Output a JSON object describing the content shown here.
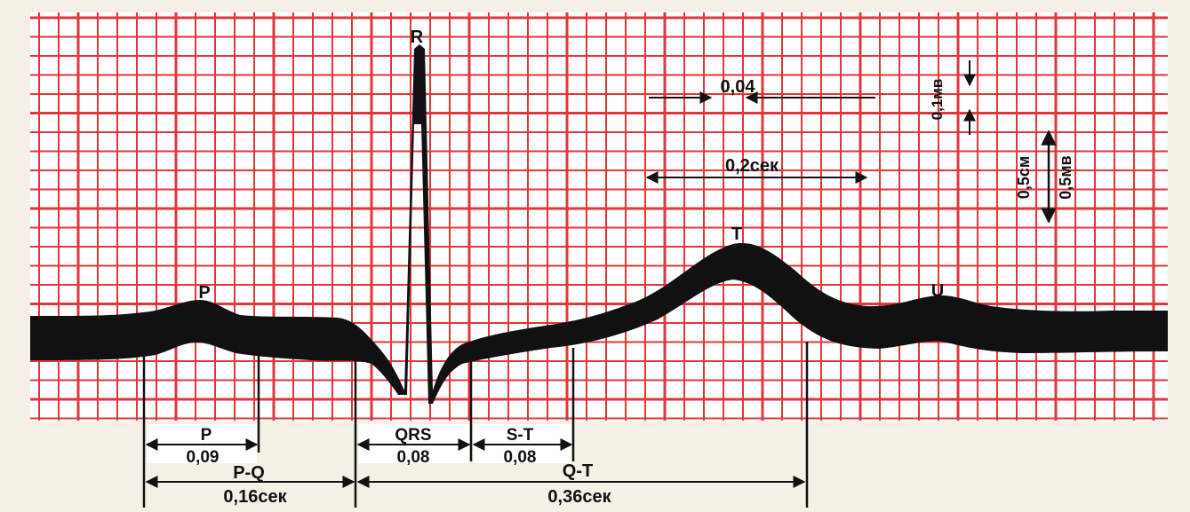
{
  "waves": {
    "p": "P",
    "r": "R",
    "t": "T",
    "u": "U"
  },
  "scale": {
    "small_square": "0,04",
    "big_square": "0,2сек",
    "small_amplitude": "0,1мв",
    "big_size": "0,5см",
    "big_amplitude": "0,5мв"
  },
  "intervals": {
    "p_name": "P",
    "p_value": "0,09",
    "pq_name": "P-Q",
    "pq_value": "0,16сек",
    "qrs_name": "QRS",
    "qrs_value": "0,08",
    "st_name": "S-T",
    "st_value": "0,08",
    "qt_name": "Q-T",
    "qt_value": "0,36сек"
  },
  "colors": {
    "grid": "#e0363c",
    "background": "#ffffff",
    "trace": "#111111",
    "page": "#f4f0e6"
  }
}
